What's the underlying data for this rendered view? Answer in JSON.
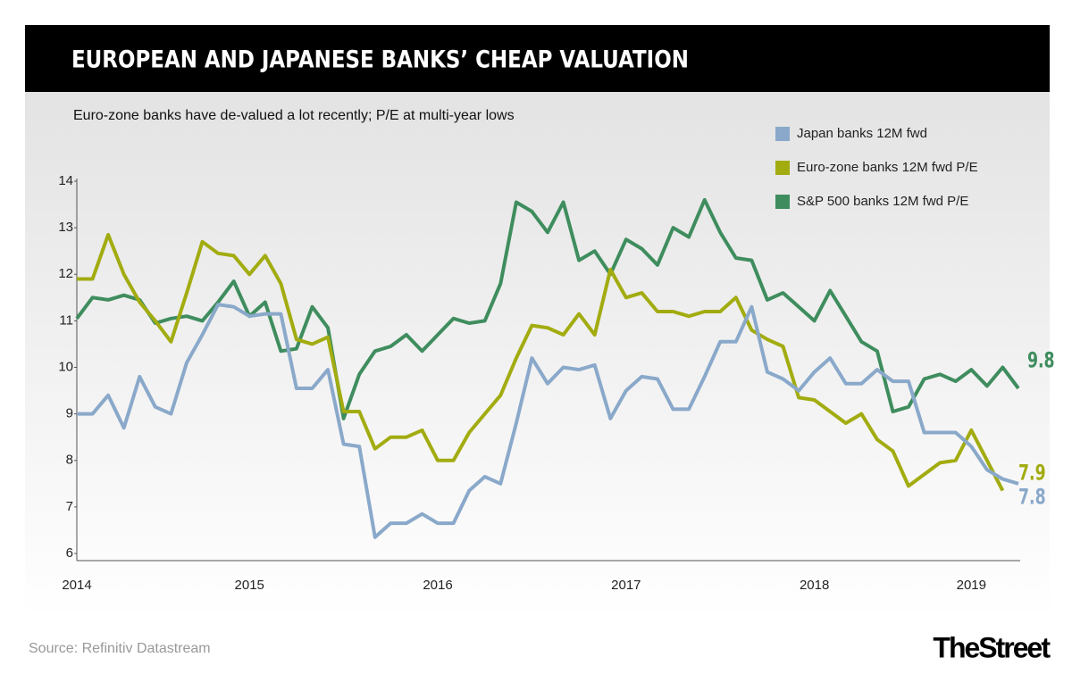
{
  "chart_data": {
    "type": "line",
    "title": "EUROPEAN AND JAPANESE BANKS’ CHEAP VALUATION",
    "subtitle": "Euro-zone banks have de-valued a lot recently; P/E at multi-year lows",
    "source": "Source: Refinitiv Datastream",
    "brand": "TheStreet",
    "categories": [
      "2014",
      null,
      null,
      null,
      null,
      null,
      null,
      null,
      null,
      null,
      null,
      "2015",
      null,
      null,
      null,
      null,
      null,
      null,
      null,
      null,
      null,
      null,
      null,
      "2016",
      null,
      null,
      null,
      null,
      null,
      null,
      null,
      null,
      null,
      null,
      null,
      "2017",
      null,
      null,
      null,
      null,
      null,
      null,
      null,
      null,
      null,
      null,
      null,
      "2018",
      null,
      null,
      null,
      null,
      null,
      null,
      null,
      null,
      null,
      "2019",
      null,
      null,
      null
    ],
    "series": [
      {
        "name": "Japan banks 12M fwd",
        "color": "#8aa9ca",
        "values": [
          9.0,
          9.0,
          9.4,
          8.7,
          9.8,
          9.15,
          9.0,
          10.1,
          10.7,
          11.35,
          11.3,
          11.1,
          11.15,
          11.15,
          9.55,
          9.55,
          9.95,
          8.35,
          8.3,
          6.35,
          6.65,
          6.65,
          6.85,
          6.65,
          6.65,
          7.35,
          7.65,
          7.5,
          8.8,
          10.2,
          9.65,
          10.0,
          9.95,
          10.05,
          8.9,
          9.5,
          9.8,
          9.75,
          9.1,
          9.1,
          9.8,
          10.55,
          10.55,
          11.3,
          9.9,
          9.75,
          9.5,
          9.9,
          10.2,
          9.65,
          9.65,
          9.95,
          9.7,
          9.7,
          8.6,
          8.6,
          8.6,
          8.3,
          7.8,
          7.6,
          7.5
        ]
      },
      {
        "name": "Euro-zone banks 12M fwd P/E",
        "color": "#a2ac10",
        "values": [
          11.9,
          11.9,
          12.85,
          12.0,
          11.4,
          11.0,
          10.55,
          11.6,
          12.7,
          12.45,
          12.4,
          12.0,
          12.4,
          11.8,
          10.6,
          10.5,
          10.65,
          9.05,
          9.05,
          8.25,
          8.5,
          8.5,
          8.65,
          8.0,
          8.0,
          8.6,
          9.0,
          9.4,
          10.2,
          10.9,
          10.85,
          10.7,
          11.15,
          10.7,
          12.1,
          11.5,
          11.6,
          11.2,
          11.2,
          11.1,
          11.2,
          11.2,
          11.5,
          10.8,
          10.6,
          10.45,
          9.35,
          9.3,
          9.05,
          8.8,
          9.0,
          8.45,
          8.2,
          7.45,
          7.7,
          7.95,
          8.0,
          8.65,
          8.0,
          7.35,
          null
        ]
      },
      {
        "name": "S&P 500 banks 12M fwd P/E",
        "color": "#3f8d5e",
        "values": [
          11.05,
          11.5,
          11.45,
          11.55,
          11.45,
          10.95,
          11.05,
          11.1,
          11.0,
          11.4,
          11.85,
          11.1,
          11.4,
          10.35,
          10.4,
          11.3,
          10.85,
          8.9,
          9.85,
          10.35,
          10.45,
          10.7,
          10.35,
          10.7,
          11.05,
          10.95,
          11.0,
          11.8,
          13.55,
          13.35,
          12.9,
          13.55,
          12.3,
          12.5,
          12.0,
          12.75,
          12.55,
          12.2,
          13.0,
          12.8,
          13.6,
          12.9,
          12.35,
          12.3,
          11.45,
          11.6,
          11.3,
          11.0,
          11.65,
          11.1,
          10.55,
          10.35,
          9.05,
          9.15,
          9.75,
          9.85,
          9.7,
          9.95,
          9.6,
          10.0,
          9.55
        ]
      }
    ],
    "annotations": [
      "9.8",
      "7.9",
      "7.8"
    ],
    "ylim": [
      6,
      14
    ],
    "yticks": [
      6,
      7,
      8,
      9,
      10,
      11,
      12,
      13,
      14
    ],
    "legend": "top-right"
  }
}
